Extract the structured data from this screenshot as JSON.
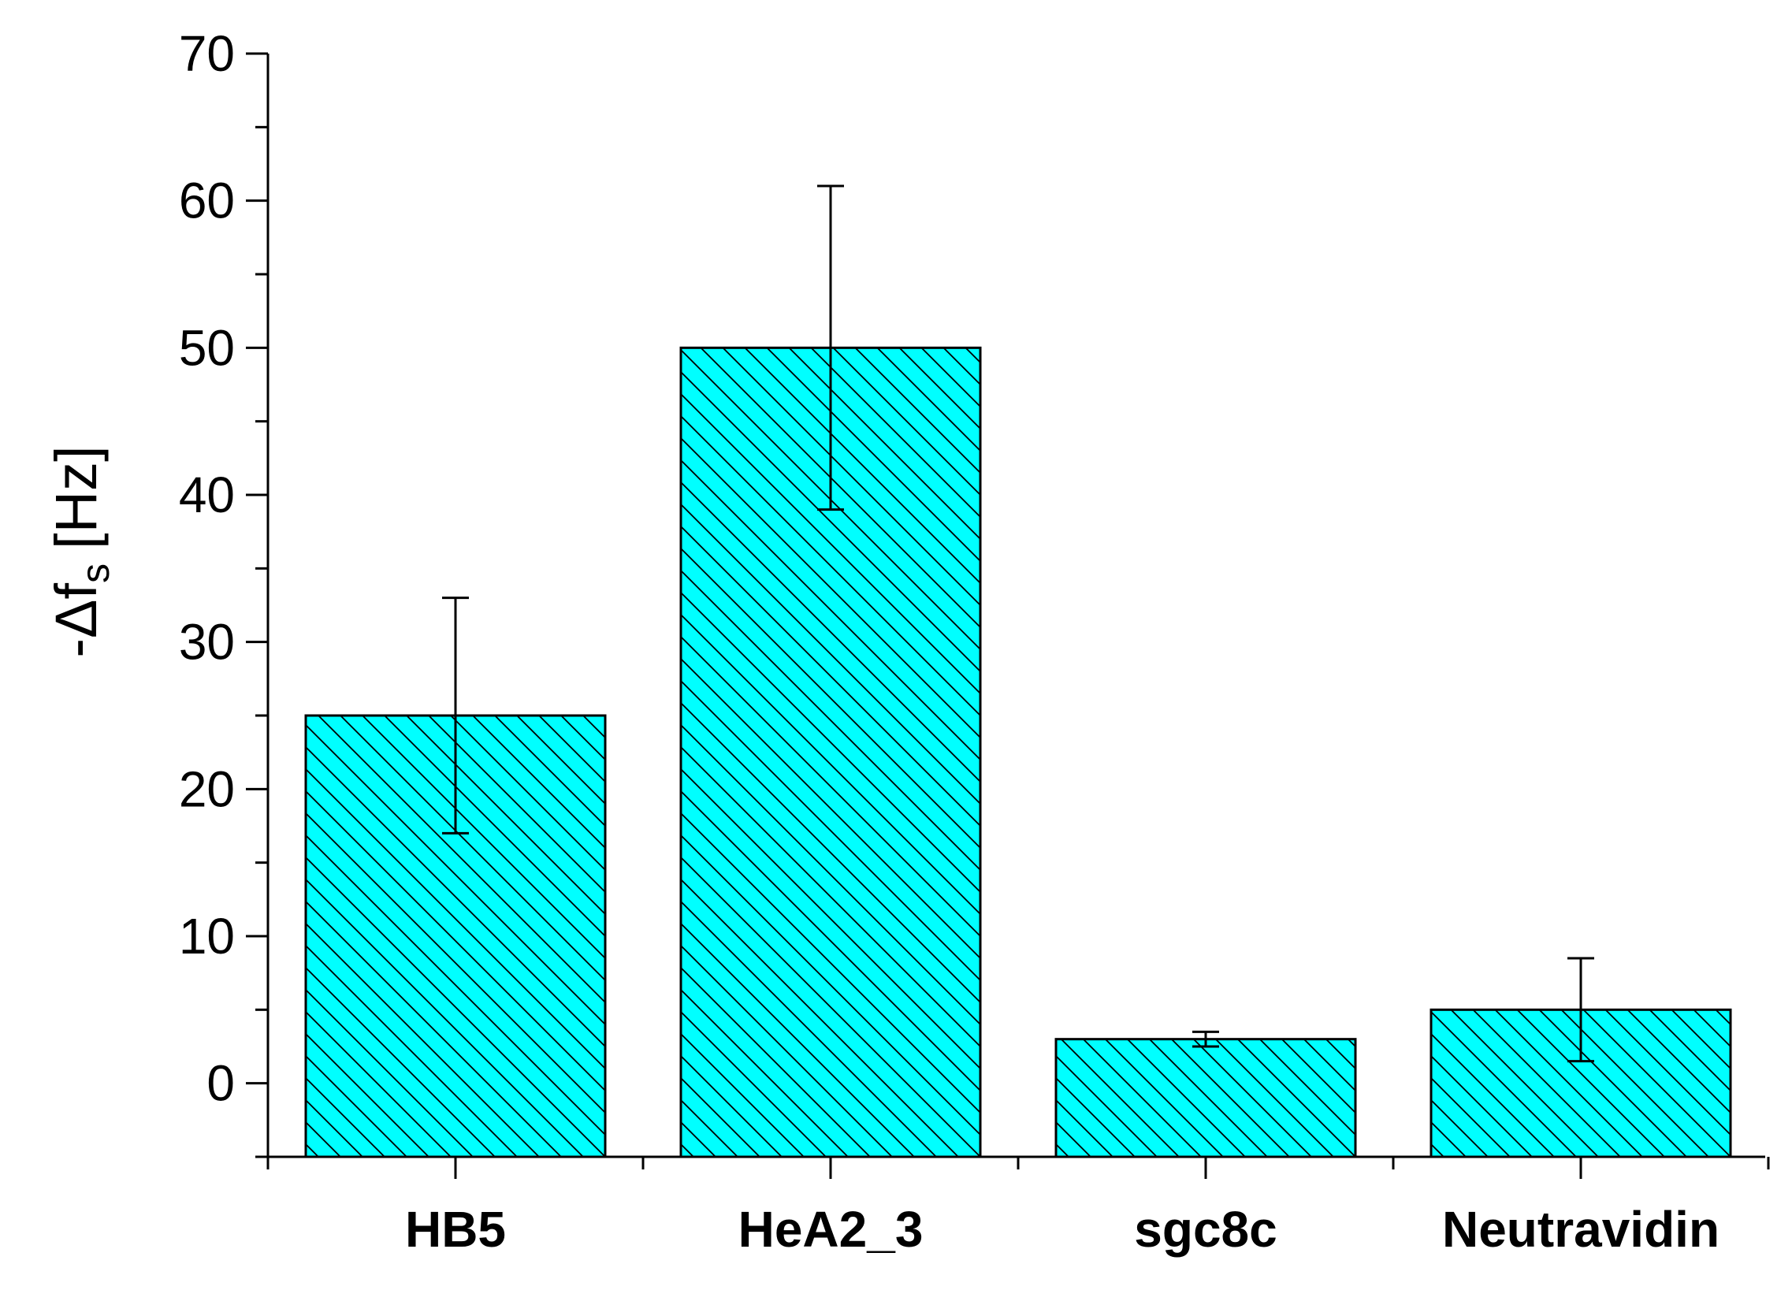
{
  "chart_data": {
    "type": "bar",
    "categories": [
      "HB5",
      "HeA2_3",
      "sgc8c",
      "Neutravidin"
    ],
    "values": [
      25,
      50,
      3,
      5
    ],
    "errors": [
      8,
      11,
      0.5,
      3.5
    ],
    "ylabel_main": "-Δf",
    "ylabel_sub": "s",
    "ylabel_unit": "[Hz]",
    "ylim": [
      -5,
      70
    ],
    "yticks": [
      0,
      10,
      20,
      30,
      40,
      50,
      60,
      70
    ],
    "bar_color": "#00ffff",
    "bar_pattern": "diagonal-hatch",
    "grid": false,
    "legend": "none"
  }
}
